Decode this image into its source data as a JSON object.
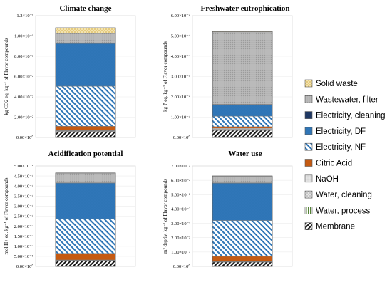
{
  "legend": [
    {
      "key": "solid",
      "label": "Solid waste"
    },
    {
      "key": "wwfilter",
      "label": "Wastewater, filter"
    },
    {
      "key": "elclean",
      "label": "Electricity, cleaning"
    },
    {
      "key": "eldf",
      "label": "Electricity, DF"
    },
    {
      "key": "elnf",
      "label": "Electricity, NF"
    },
    {
      "key": "citric",
      "label": "Citric Acid"
    },
    {
      "key": "naoh",
      "label": "NaOH"
    },
    {
      "key": "wclean",
      "label": "Water, cleaning"
    },
    {
      "key": "wproc",
      "label": "Water, process"
    },
    {
      "key": "membrane",
      "label": "Membrane"
    }
  ],
  "colors": {
    "membrane": "#1a1a1a",
    "wproc": "#548235",
    "wclean": "#808080",
    "naoh": "#bfbfbf",
    "citric": "#c55a11",
    "elnf": "#2e75b6",
    "eldf": "#2e75b6",
    "elclean": "#1f3864",
    "wwfilter": "#a6a6a6",
    "solid": "#bf9000"
  },
  "chart_data": [
    {
      "type": "bar",
      "stacked": true,
      "title": "Climate change",
      "ylabel": "kg CO2 eq. kg⁻¹ of Flavor compounds",
      "ylim": [
        0,
        0.12
      ],
      "yticks": [
        "0.00×10⁰",
        "2.00×10⁻²",
        "4.00×10⁻²",
        "6.00×10⁻²",
        "8.00×10⁻²",
        "1.00×10⁻¹",
        "1.2×10⁻¹"
      ],
      "series": [
        {
          "key": "membrane",
          "value": 0.006
        },
        {
          "key": "wproc",
          "value": 0.0
        },
        {
          "key": "wclean",
          "value": 0.0005
        },
        {
          "key": "naoh",
          "value": 0.0005
        },
        {
          "key": "citric",
          "value": 0.004
        },
        {
          "key": "elnf",
          "value": 0.0395
        },
        {
          "key": "eldf",
          "value": 0.042
        },
        {
          "key": "elclean",
          "value": 0.0003
        },
        {
          "key": "wwfilter",
          "value": 0.0097
        },
        {
          "key": "solid",
          "value": 0.0055
        }
      ]
    },
    {
      "type": "bar",
      "stacked": true,
      "title": "Freshwater eutrophication",
      "ylabel": "kg P eq. kg⁻¹ of Flavor compounds",
      "ylim": [
        0,
        0.0006
      ],
      "yticks": [
        "0.00×10⁰",
        "1.00×10⁻⁴",
        "2.00×10⁻⁴",
        "3.00×10⁻⁴",
        "4.00×10⁻⁴",
        "5.00×10⁻⁴",
        "6.00×10⁻⁴"
      ],
      "series": [
        {
          "key": "membrane",
          "value": 3.5e-05
        },
        {
          "key": "wproc",
          "value": 0.0
        },
        {
          "key": "wclean",
          "value": 5e-06
        },
        {
          "key": "naoh",
          "value": 5e-06
        },
        {
          "key": "citric",
          "value": 8e-06
        },
        {
          "key": "elnf",
          "value": 5.2e-05
        },
        {
          "key": "eldf",
          "value": 5.6e-05
        },
        {
          "key": "elclean",
          "value": 2e-06
        },
        {
          "key": "wwfilter",
          "value": 0.000357
        },
        {
          "key": "solid",
          "value": 3e-06
        }
      ]
    },
    {
      "type": "bar",
      "stacked": true,
      "title": "Acidification potential",
      "ylabel": "mol H+ eq. kg⁻¹ of Flavor compounds",
      "ylim": [
        0,
        0.0005
      ],
      "yticks": [
        "0.00×10⁰",
        "5.00×10⁻⁵",
        "1.00×10⁻⁴",
        "1.50×10⁻⁴",
        "2.00×10⁻⁴",
        "2.50×10⁻⁴",
        "3.00×10⁻⁴",
        "3.50×10⁻⁴",
        "4.00×10⁻⁴",
        "4.50×10⁻⁴",
        "5.00×10⁻⁴"
      ],
      "series": [
        {
          "key": "membrane",
          "value": 2.8e-05
        },
        {
          "key": "wproc",
          "value": 0.0
        },
        {
          "key": "wclean",
          "value": 2e-06
        },
        {
          "key": "naoh",
          "value": 2e-06
        },
        {
          "key": "citric",
          "value": 3.3e-05
        },
        {
          "key": "elnf",
          "value": 0.000172
        },
        {
          "key": "eldf",
          "value": 0.000178
        },
        {
          "key": "elclean",
          "value": 1e-06
        },
        {
          "key": "wwfilter",
          "value": 4.9e-05
        },
        {
          "key": "solid",
          "value": 0.0
        }
      ]
    },
    {
      "type": "bar",
      "stacked": true,
      "title": "Water use",
      "ylabel": "m³ depriv. kg⁻¹ of Flavor compounds",
      "ylim": [
        0,
        0.07
      ],
      "yticks": [
        "0.00×10⁰",
        "1.00×10⁻²",
        "2.00×10⁻²",
        "3.00×10⁻²",
        "4.00×10⁻²",
        "5.00×10⁻²",
        "6.00×10⁻²",
        "7.00×10⁻²"
      ],
      "series": [
        {
          "key": "membrane",
          "value": 0.003
        },
        {
          "key": "wproc",
          "value": 0.0
        },
        {
          "key": "wclean",
          "value": 0.0002
        },
        {
          "key": "naoh",
          "value": 0.0002
        },
        {
          "key": "citric",
          "value": 0.0036
        },
        {
          "key": "elnf",
          "value": 0.025
        },
        {
          "key": "eldf",
          "value": 0.026
        },
        {
          "key": "elclean",
          "value": 0.0002
        },
        {
          "key": "wwfilter",
          "value": 0.0048
        },
        {
          "key": "solid",
          "value": 0.0
        }
      ]
    }
  ]
}
